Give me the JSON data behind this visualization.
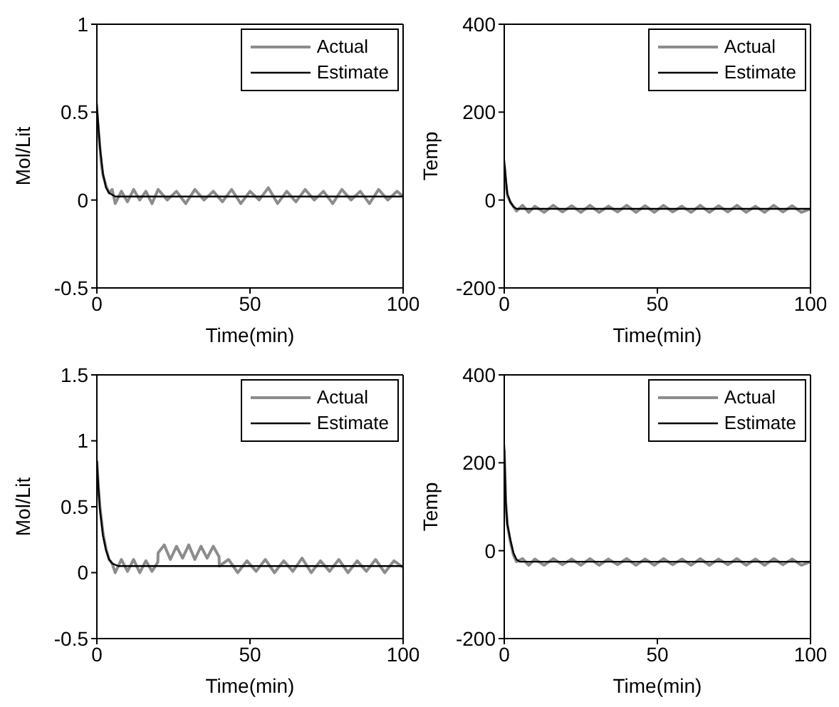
{
  "chart_data": [
    {
      "type": "line",
      "xlabel": "Time(min)",
      "ylabel": "Mol/Lit",
      "xlim": [
        0,
        100
      ],
      "xticks": [
        0,
        50,
        100
      ],
      "ylim": [
        -0.5,
        1
      ],
      "yticks": [
        -0.5,
        0,
        0.5,
        1
      ],
      "legend": "top right",
      "series": [
        {
          "name": "Actual",
          "color": "#8c8c8c",
          "x": [
            0,
            0.5,
            1,
            1.5,
            2,
            3,
            4,
            5,
            6,
            8,
            10,
            12,
            14,
            16,
            18,
            20,
            23,
            26,
            29,
            32,
            35,
            38,
            41,
            44,
            47,
            50,
            53,
            56,
            59,
            62,
            65,
            68,
            71,
            74,
            77,
            80,
            83,
            86,
            89,
            92,
            95,
            98,
            100
          ],
          "values": [
            0.5,
            0.4,
            0.3,
            0.2,
            0.14,
            0.08,
            0.04,
            0.06,
            -0.02,
            0.05,
            -0.01,
            0.06,
            0.0,
            0.05,
            -0.02,
            0.06,
            0.0,
            0.05,
            -0.02,
            0.06,
            0.0,
            0.05,
            -0.01,
            0.06,
            -0.02,
            0.05,
            0.0,
            0.07,
            -0.02,
            0.05,
            -0.01,
            0.06,
            0.0,
            0.05,
            -0.02,
            0.06,
            0.0,
            0.05,
            -0.02,
            0.06,
            0.0,
            0.05,
            0.02
          ]
        },
        {
          "name": "Estimate",
          "color": "#000000",
          "x": [
            0,
            0.5,
            1,
            2,
            3,
            4,
            6,
            100
          ],
          "values": [
            0.55,
            0.42,
            0.3,
            0.15,
            0.07,
            0.04,
            0.02,
            0.02
          ]
        }
      ]
    },
    {
      "type": "line",
      "xlabel": "Time(min)",
      "ylabel": "Temp",
      "xlim": [
        0,
        100
      ],
      "xticks": [
        0,
        50,
        100
      ],
      "ylim": [
        -200,
        400
      ],
      "yticks": [
        -200,
        0,
        200,
        400
      ],
      "legend": "top right",
      "series": [
        {
          "name": "Actual",
          "color": "#8c8c8c",
          "x": [
            0,
            0.5,
            1,
            2,
            3,
            4,
            6,
            8,
            10,
            13,
            16,
            19,
            22,
            25,
            28,
            31,
            34,
            37,
            40,
            43,
            46,
            49,
            52,
            55,
            58,
            61,
            64,
            67,
            70,
            73,
            76,
            79,
            82,
            85,
            88,
            91,
            94,
            97,
            100
          ],
          "values": [
            80,
            40,
            10,
            -5,
            -15,
            -25,
            -12,
            -28,
            -14,
            -28,
            -12,
            -27,
            -13,
            -28,
            -12,
            -28,
            -14,
            -27,
            -12,
            -28,
            -13,
            -28,
            -12,
            -27,
            -14,
            -28,
            -12,
            -28,
            -13,
            -27,
            -12,
            -28,
            -14,
            -28,
            -12,
            -27,
            -13,
            -28,
            -20
          ]
        },
        {
          "name": "Estimate",
          "color": "#000000",
          "x": [
            0,
            0.5,
            1,
            2,
            3,
            4,
            100
          ],
          "values": [
            90,
            50,
            15,
            -5,
            -15,
            -20,
            -20
          ]
        }
      ]
    },
    {
      "type": "line",
      "xlabel": "Time(min)",
      "ylabel": "Mol/Lit",
      "xlim": [
        0,
        100
      ],
      "xticks": [
        0,
        50,
        100
      ],
      "ylim": [
        -0.5,
        1.5
      ],
      "yticks": [
        -0.5,
        0,
        0.5,
        1,
        1.5
      ],
      "legend": "top right",
      "series": [
        {
          "name": "Actual",
          "color": "#8c8c8c",
          "x": [
            0,
            0.5,
            1,
            2,
            3,
            4,
            5,
            6,
            8,
            10,
            12,
            14,
            16,
            18,
            19.9,
            20,
            22,
            24,
            26,
            28,
            30,
            32,
            34,
            36,
            38,
            39.9,
            40,
            43,
            46,
            49,
            52,
            55,
            58,
            61,
            64,
            67,
            70,
            73,
            76,
            79,
            82,
            85,
            88,
            91,
            94,
            97,
            100
          ],
          "values": [
            0.85,
            0.65,
            0.5,
            0.3,
            0.18,
            0.1,
            0.07,
            0.0,
            0.1,
            0.01,
            0.1,
            0.0,
            0.09,
            0.01,
            0.08,
            0.15,
            0.21,
            0.1,
            0.2,
            0.11,
            0.21,
            0.1,
            0.2,
            0.11,
            0.2,
            0.12,
            0.05,
            0.1,
            0.0,
            0.09,
            0.01,
            0.1,
            0.0,
            0.09,
            0.01,
            0.11,
            0.0,
            0.09,
            0.01,
            0.1,
            0.0,
            0.09,
            0.01,
            0.1,
            0.0,
            0.09,
            0.04
          ]
        },
        {
          "name": "Estimate",
          "color": "#000000",
          "x": [
            0,
            0.5,
            1,
            2,
            3,
            4,
            5,
            7,
            100
          ],
          "values": [
            0.85,
            0.65,
            0.48,
            0.28,
            0.17,
            0.1,
            0.07,
            0.05,
            0.05
          ]
        }
      ]
    },
    {
      "type": "line",
      "xlabel": "Time(min)",
      "ylabel": "Temp",
      "xlim": [
        0,
        100
      ],
      "xticks": [
        0,
        50,
        100
      ],
      "ylim": [
        -200,
        400
      ],
      "yticks": [
        -200,
        0,
        200,
        400
      ],
      "legend": "top right",
      "series": [
        {
          "name": "Actual",
          "color": "#8c8c8c",
          "x": [
            0,
            0.5,
            1,
            2,
            3,
            4,
            6,
            8,
            10,
            13,
            16,
            19,
            22,
            25,
            28,
            31,
            34,
            37,
            40,
            43,
            46,
            49,
            52,
            55,
            58,
            61,
            64,
            67,
            70,
            73,
            76,
            79,
            82,
            85,
            88,
            91,
            94,
            97,
            100
          ],
          "values": [
            230,
            110,
            60,
            20,
            -10,
            -25,
            -18,
            -33,
            -19,
            -33,
            -18,
            -32,
            -19,
            -33,
            -18,
            -33,
            -19,
            -32,
            -18,
            -33,
            -19,
            -33,
            -18,
            -32,
            -19,
            -33,
            -18,
            -33,
            -19,
            -32,
            -18,
            -33,
            -19,
            -33,
            -18,
            -32,
            -19,
            -33,
            -25
          ]
        },
        {
          "name": "Estimate",
          "color": "#000000",
          "x": [
            0,
            0.5,
            1,
            2,
            3,
            4,
            5,
            100
          ],
          "values": [
            240,
            110,
            60,
            25,
            -5,
            -20,
            -25,
            -25
          ]
        }
      ]
    }
  ]
}
